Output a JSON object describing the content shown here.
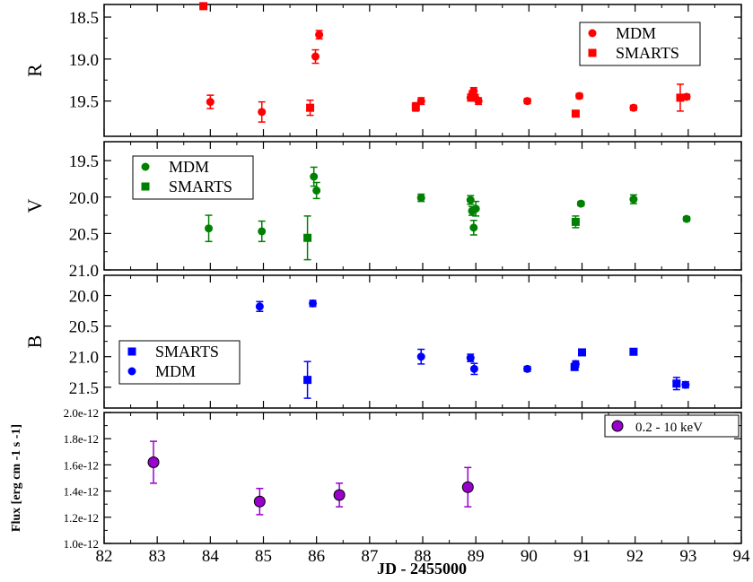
{
  "figure": {
    "xlabel": "JD - 2455000",
    "x_ticks": [
      82,
      83,
      84,
      85,
      86,
      87,
      88,
      89,
      90,
      91,
      92,
      93,
      94
    ],
    "xlim": [
      82,
      94
    ]
  },
  "chart_data": [
    {
      "type": "scatter",
      "ylabel": "R",
      "ylim": [
        18.35,
        19.92
      ],
      "y_inverted": true,
      "y_ticks": [
        "18.5",
        "19.0",
        "19.5"
      ],
      "y_tick_values": [
        18.5,
        19.0,
        19.5
      ],
      "legend": {
        "position": "top-right"
      },
      "series": [
        {
          "name": "MDM",
          "marker": "circle",
          "color": "#ff0000",
          "points": [
            {
              "x": 84.0,
              "y": 19.51,
              "err": 0.08
            },
            {
              "x": 84.97,
              "y": 19.63,
              "err": 0.12
            },
            {
              "x": 85.98,
              "y": 18.97,
              "err": 0.08
            },
            {
              "x": 86.05,
              "y": 18.71,
              "err": 0.05
            },
            {
              "x": 87.97,
              "y": 19.5,
              "err": 0.04
            },
            {
              "x": 88.9,
              "y": 19.46,
              "err": 0.04
            },
            {
              "x": 88.93,
              "y": 19.42,
              "err": 0.04
            },
            {
              "x": 88.96,
              "y": 19.38,
              "err": 0.04
            },
            {
              "x": 88.99,
              "y": 19.46,
              "err": 0.04
            },
            {
              "x": 89.05,
              "y": 19.5,
              "err": 0.04
            },
            {
              "x": 89.97,
              "y": 19.5,
              "err": 0.03
            },
            {
              "x": 90.95,
              "y": 19.44,
              "err": 0.03
            },
            {
              "x": 91.97,
              "y": 19.58,
              "err": 0.03
            },
            {
              "x": 92.97,
              "y": 19.45,
              "err": 0.03
            }
          ]
        },
        {
          "name": "SMARTS",
          "marker": "square",
          "color": "#ff0000",
          "points": [
            {
              "x": 83.87,
              "y": 18.37,
              "err": 0.0
            },
            {
              "x": 85.88,
              "y": 19.58,
              "err": 0.09
            },
            {
              "x": 87.87,
              "y": 19.57,
              "err": 0.05
            },
            {
              "x": 90.88,
              "y": 19.65,
              "err": 0.02
            },
            {
              "x": 92.85,
              "y": 19.46,
              "err": 0.16
            }
          ]
        }
      ]
    },
    {
      "type": "scatter",
      "ylabel": "V",
      "ylim": [
        19.24,
        21.0
      ],
      "y_inverted": true,
      "y_ticks": [
        "19.5",
        "20.0",
        "20.5",
        "21.0"
      ],
      "y_tick_values": [
        19.5,
        20.0,
        20.5,
        21.0
      ],
      "legend": {
        "position": "top-left"
      },
      "series": [
        {
          "name": "MDM",
          "marker": "circle",
          "color": "#008000",
          "points": [
            {
              "x": 83.97,
              "y": 20.43,
              "err": 0.18
            },
            {
              "x": 84.97,
              "y": 20.47,
              "err": 0.14
            },
            {
              "x": 85.95,
              "y": 19.72,
              "err": 0.13
            },
            {
              "x": 86.0,
              "y": 19.91,
              "err": 0.11
            },
            {
              "x": 87.97,
              "y": 20.01,
              "err": 0.05
            },
            {
              "x": 88.9,
              "y": 20.04,
              "err": 0.06
            },
            {
              "x": 88.93,
              "y": 20.19,
              "err": 0.06
            },
            {
              "x": 88.96,
              "y": 20.42,
              "err": 0.1
            },
            {
              "x": 89.0,
              "y": 20.16,
              "err": 0.1
            },
            {
              "x": 90.98,
              "y": 20.09,
              "err": 0.03
            },
            {
              "x": 91.97,
              "y": 20.03,
              "err": 0.06
            },
            {
              "x": 92.97,
              "y": 20.3,
              "err": 0.03
            }
          ]
        },
        {
          "name": "SMARTS",
          "marker": "square",
          "color": "#008000",
          "points": [
            {
              "x": 85.83,
              "y": 20.56,
              "err": 0.3
            },
            {
              "x": 90.88,
              "y": 20.34,
              "err": 0.08
            }
          ]
        }
      ]
    },
    {
      "type": "scatter",
      "ylabel": "B",
      "ylim": [
        19.67,
        21.84
      ],
      "y_inverted": true,
      "y_ticks": [
        "20.0",
        "20.5",
        "21.0",
        "21.5"
      ],
      "y_tick_values": [
        20.0,
        20.5,
        21.0,
        21.5
      ],
      "legend": {
        "position": "bottom-left"
      },
      "series": [
        {
          "name": "SMARTS",
          "marker": "square",
          "color": "#0000ff",
          "points": [
            {
              "x": 85.83,
              "y": 21.38,
              "err": 0.3
            },
            {
              "x": 90.86,
              "y": 21.17,
              "err": 0.05
            },
            {
              "x": 91.0,
              "y": 20.93,
              "err": 0.03
            },
            {
              "x": 91.97,
              "y": 20.92,
              "err": 0.03
            },
            {
              "x": 92.78,
              "y": 21.44,
              "err": 0.1
            }
          ]
        },
        {
          "name": "MDM",
          "marker": "circle",
          "color": "#0000ff",
          "points": [
            {
              "x": 84.93,
              "y": 20.18,
              "err": 0.08
            },
            {
              "x": 85.93,
              "y": 20.13,
              "err": 0.05
            },
            {
              "x": 87.97,
              "y": 21.0,
              "err": 0.12
            },
            {
              "x": 88.9,
              "y": 21.02,
              "err": 0.06
            },
            {
              "x": 88.97,
              "y": 21.2,
              "err": 0.09
            },
            {
              "x": 89.97,
              "y": 21.2,
              "err": 0.04
            },
            {
              "x": 90.88,
              "y": 21.12,
              "err": 0.05
            },
            {
              "x": 92.95,
              "y": 21.46,
              "err": 0.05
            }
          ]
        }
      ]
    },
    {
      "type": "scatter",
      "ylabel": "Flux [erg cm -1 s -1]",
      "ylim": [
        1e-12,
        2e-12
      ],
      "y_inverted": false,
      "y_ticks": [
        "1.0e-12",
        "1.2e-12",
        "1.4e-12",
        "1.6e-12",
        "1.8e-12",
        "2.0e-12"
      ],
      "y_tick_values": [
        1e-12,
        1.2e-12,
        1.4e-12,
        1.6e-12,
        1.8e-12,
        2e-12
      ],
      "legend": {
        "position": "top-right"
      },
      "series": [
        {
          "name": "0.2 - 10 keV",
          "marker": "circle-large",
          "color": "#9900cc",
          "points": [
            {
              "x": 82.93,
              "y": 1.62e-12,
              "err": 1.6e-13
            },
            {
              "x": 84.93,
              "y": 1.32e-12,
              "err": 1e-13
            },
            {
              "x": 86.43,
              "y": 1.37e-12,
              "err": 9e-14
            },
            {
              "x": 88.85,
              "y": 1.43e-12,
              "err": 1.5e-13
            }
          ]
        }
      ]
    }
  ]
}
